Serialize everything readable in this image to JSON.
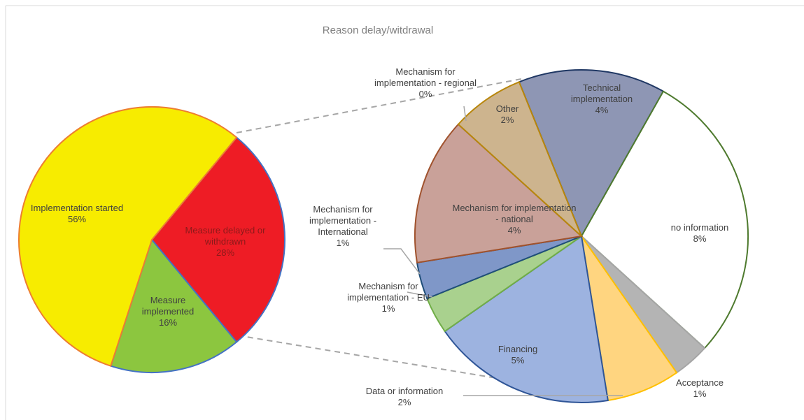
{
  "chart_data": {
    "type": "pie-of-pie",
    "title": "Reason delay/witdrawal",
    "charts": [
      {
        "type": "pie",
        "categories": [
          "Measure delayed or withdrawn",
          "Measure implemented",
          "Implementation started"
        ],
        "values": [
          28,
          16,
          56
        ],
        "value_labels": [
          "28%",
          "16%",
          "56%"
        ],
        "colors": [
          "#ee1c25",
          "#8cc63f",
          "#f7ec00"
        ]
      },
      {
        "type": "pie",
        "categories": [
          "Technical implementation",
          "no information",
          "Acceptance",
          "Data or information",
          "Financing",
          "Mechanism for implementation - EU",
          "Mechanism for implementation - International",
          "Mechanism for implementation - national",
          "Mechanism for implementation - regional",
          "Other"
        ],
        "values": [
          4,
          8,
          1,
          2,
          5,
          1,
          1,
          4,
          0,
          2
        ],
        "value_labels": [
          "4%",
          "8%",
          "1%",
          "2%",
          "5%",
          "1%",
          "1%",
          "4%",
          "0%",
          "2%"
        ],
        "colors": [
          "#8e96b4",
          "#ffffff",
          "#b4b4b4",
          "#ffd580",
          "#9db3e0",
          "#a9d18e",
          "#7f97c8",
          "#c9a199",
          "#a5a5a5",
          "#cdb48e"
        ]
      }
    ]
  }
}
